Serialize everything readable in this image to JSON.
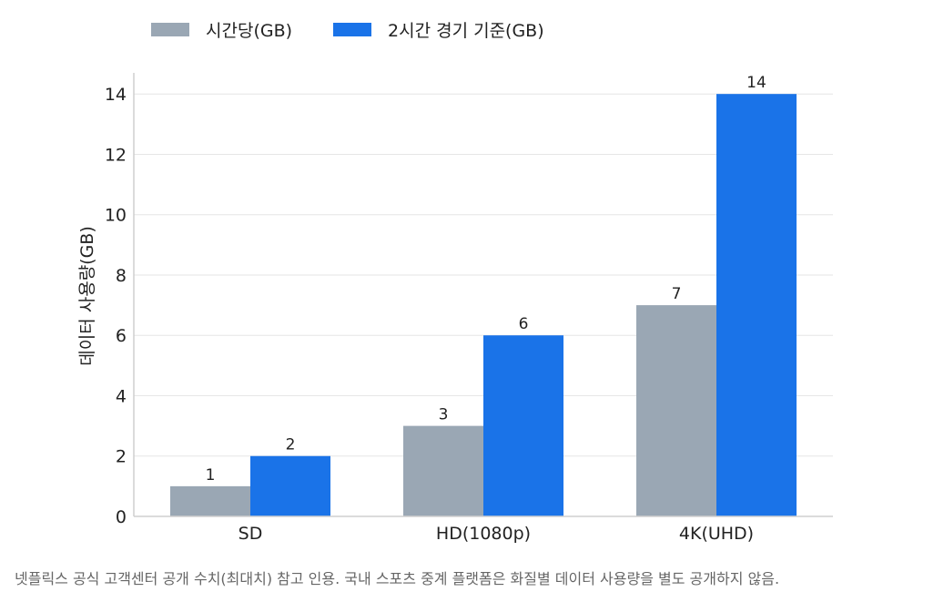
{
  "chart_data": {
    "type": "bar",
    "categories": [
      "SD",
      "HD(1080p)",
      "4K(UHD)"
    ],
    "series": [
      {
        "name": "시간당(GB)",
        "values": [
          1,
          3,
          7
        ],
        "color": "#9aa7b4"
      },
      {
        "name": "2시간 경기 기준(GB)",
        "values": [
          2,
          6,
          14
        ],
        "color": "#1a73e8"
      }
    ],
    "ylabel": "데이터 사용량(GB)",
    "ylim": [
      0,
      14.7
    ],
    "yticks": [
      0,
      2,
      4,
      6,
      8,
      10,
      12,
      14
    ],
    "grid": true,
    "legend": "top-left"
  },
  "caption": "넷플릭스 공식 고객센터 공개 수치(최대치) 참고 인용. 국내 스포츠 중계 플랫폼은 화질별 데이터 사용량을 별도 공개하지 않음."
}
